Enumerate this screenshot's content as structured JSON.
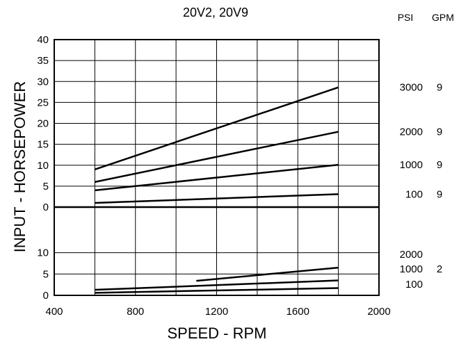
{
  "chart_data": {
    "type": "line",
    "title": "20V2, 20V9",
    "xlabel": "SPEED - RPM",
    "ylabel": "INPUT - HORSEPOWER",
    "xlim": [
      400,
      2000
    ],
    "x_ticks": [
      "400",
      "800",
      "1200",
      "1600",
      "2000"
    ],
    "grid": true,
    "upper_panel": {
      "ylim": [
        0,
        40
      ],
      "y_ticks": [
        "40",
        "35",
        "30",
        "25",
        "20",
        "15",
        "10",
        "5",
        "0"
      ],
      "series": [
        {
          "x": [
            600,
            1800
          ],
          "y": [
            9,
            28.6
          ]
        },
        {
          "x": [
            600,
            1800
          ],
          "y": [
            6,
            18
          ]
        },
        {
          "x": [
            600,
            1800
          ],
          "y": [
            4,
            10.1
          ]
        },
        {
          "x": [
            600,
            1800
          ],
          "y": [
            1,
            3.1
          ]
        }
      ]
    },
    "lower_panel": {
      "ylim": [
        0,
        11
      ],
      "y_ticks": [
        "10",
        "5",
        "0"
      ],
      "series": [
        {
          "x": [
            1100,
            1800
          ],
          "y": [
            3.4,
            6.5
          ]
        },
        {
          "x": [
            600,
            1800
          ],
          "y": [
            1.3,
            3.5
          ]
        },
        {
          "x": [
            600,
            1800
          ],
          "y": [
            0.6,
            1.7
          ]
        }
      ]
    },
    "right_header": {
      "psi": "PSI",
      "gpm": "GPM"
    },
    "right_labels_upper": [
      {
        "psi": "3000",
        "gpm": "9"
      },
      {
        "psi": "2000",
        "gpm": "9"
      },
      {
        "psi": "1000",
        "gpm": "9"
      },
      {
        "psi": "100",
        "gpm": "9"
      }
    ],
    "right_labels_lower": {
      "psi": [
        "2000",
        "1000",
        "100"
      ],
      "gpm": "2"
    }
  }
}
